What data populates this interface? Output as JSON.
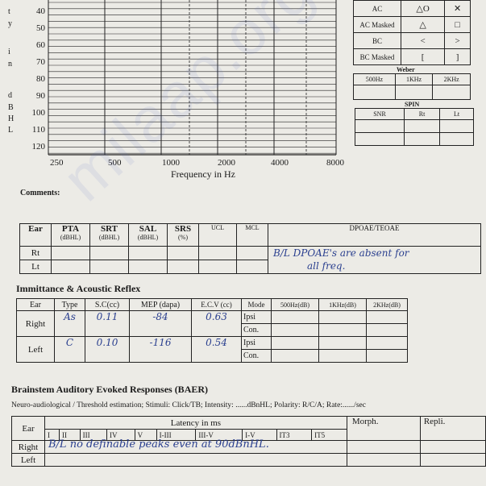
{
  "audiogram": {
    "side_letters": [
      "t",
      "y",
      "i",
      "n",
      "d",
      "B",
      "H",
      "L"
    ],
    "db_labels": [
      "40",
      "50",
      "60",
      "70",
      "80",
      "90",
      "100",
      "110",
      "120"
    ],
    "freq_labels": [
      "250",
      "500",
      "1000",
      "2000",
      "4000",
      "8000"
    ],
    "xlabel": "Frequency in Hz"
  },
  "legend": {
    "rows": [
      "AC",
      "AC Masked",
      "BC",
      "BC Masked"
    ],
    "weber_title": "Weber",
    "weber_cols": [
      "500Hz",
      "1KHz",
      "2KHz"
    ],
    "spin_title": "SPIN",
    "spin_cols": [
      "SNR",
      "Rt",
      "Lt"
    ]
  },
  "comments_label": "Comments:",
  "speech": {
    "headers": [
      "Ear",
      "PTA",
      "SRT",
      "SAL",
      "SRS",
      "UCL",
      "MCL",
      "DPOAE/TEOAE"
    ],
    "units": [
      "(dBHL)",
      "(dBHL)",
      "(dBHL)",
      "(%)"
    ],
    "rows": [
      "Rt",
      "Lt"
    ],
    "dpoae_note_line1": "B/L DPOAE's are absent for",
    "dpoae_note_line2": "all freq."
  },
  "immittance": {
    "title": "Immittance & Acoustic Reflex",
    "headers": [
      "Ear",
      "Type",
      "S.C(cc)",
      "MEP (dapa)",
      "E.C.V (cc)",
      "Mode",
      "500Hz(dB)",
      "1KHz(dB)",
      "2KHz(dB)"
    ],
    "right": {
      "ear": "Right",
      "type": "As",
      "sc": "0.11",
      "mep": "-84",
      "ecv": "0.63"
    },
    "left": {
      "ear": "Left",
      "type": "C",
      "sc": "0.10",
      "mep": "-116",
      "ecv": "0.54"
    },
    "modes": [
      "Ipsi",
      "Con."
    ]
  },
  "baer": {
    "title": "Brainstem Auditory Evoked Responses (BAER)",
    "subtitle": "Neuro-audiological / Threshold estimation; Stimuli: Click/TB; Intensity: ......dBnHL; Polarity: R/C/A; Rate:....../sec",
    "ear_label": "Ear",
    "latency_label": "Latency in ms",
    "cols": [
      "I",
      "II",
      "III",
      "IV",
      "V",
      "I-III",
      "III-V",
      "I-V",
      "IT3",
      "IT5"
    ],
    "morph": "Morph.",
    "repli": "Repli.",
    "rows": [
      "Right",
      "Left"
    ],
    "right_note": "B/L no definable peaks even at 90dBnHL."
  },
  "watermark": "milaap.org/MILAAP"
}
